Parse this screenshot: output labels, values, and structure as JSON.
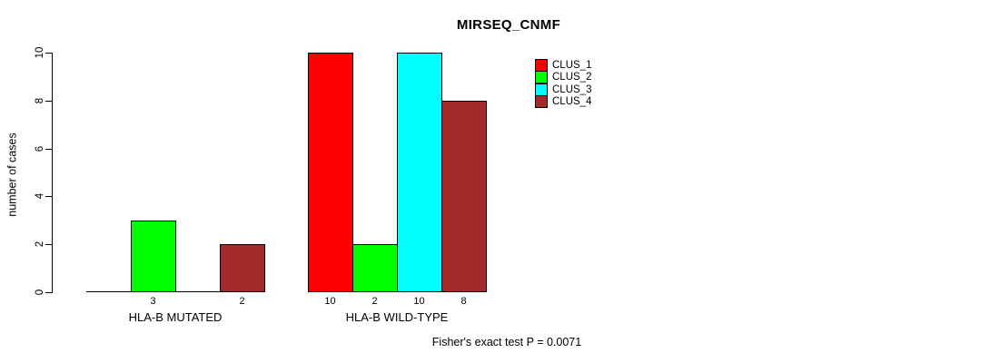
{
  "chart_data": {
    "type": "bar",
    "title": "MIRSEQ_CNMF",
    "ylabel": "number of cases",
    "xlabel": "",
    "footnote": "Fisher's exact test P = 0.0071",
    "categories": [
      "HLA-B MUTATED",
      "HLA-B WILD-TYPE"
    ],
    "series": [
      {
        "name": "CLUS_1",
        "color": "#FF0000",
        "values": [
          0,
          10
        ]
      },
      {
        "name": "CLUS_2",
        "color": "#00FF00",
        "values": [
          3,
          2
        ]
      },
      {
        "name": "CLUS_3",
        "color": "#00FFFF",
        "values": [
          0,
          10
        ]
      },
      {
        "name": "CLUS_4",
        "color": "#A52A2A",
        "values": [
          2,
          8
        ]
      }
    ],
    "bar_value_labels": [
      "3",
      "2",
      "10",
      "2",
      "10",
      "8"
    ],
    "show_zero_value_labels": false,
    "yticks": [
      0,
      2,
      4,
      6,
      8,
      10
    ],
    "ylim": [
      0,
      10
    ],
    "grid": false,
    "legend_position": "right",
    "bar_border_color": "#000000",
    "axis_color": "#000000",
    "background_color": "#FFFFFF"
  }
}
